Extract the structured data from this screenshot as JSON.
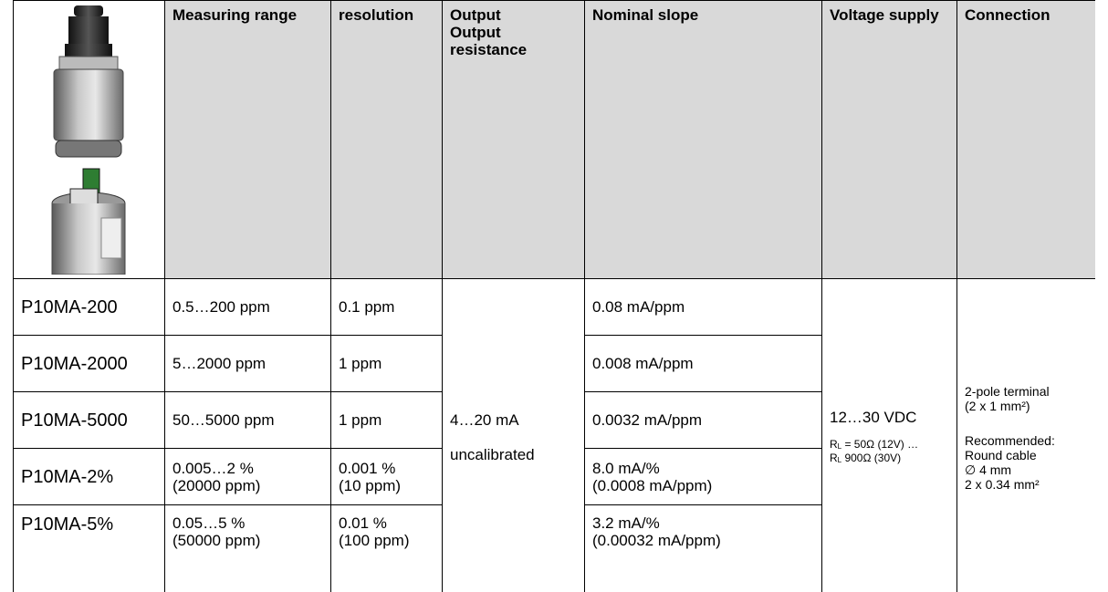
{
  "table": {
    "header": [
      "Measuring range",
      "resolution",
      [
        "Output",
        "Output resistance"
      ],
      "Nominal slope",
      "Voltage supply",
      "Connection"
    ],
    "rows": [
      [
        "P10MA-200",
        "0.5…200 ppm",
        "0.1 ppm",
        "0.08 mA/ppm"
      ],
      [
        "P10MA-2000",
        "5…2000 ppm",
        "1 ppm",
        "0.008 mA/ppm"
      ],
      [
        "P10MA-5000",
        "50…5000 ppm",
        "1 ppm",
        "0.0032 mA/ppm"
      ],
      [
        "P10MA-2%",
        [
          "0.005…2 %",
          "(20000 ppm)"
        ],
        [
          "0.001 %",
          "(10 ppm)"
        ],
        [
          "8.0 mA/%",
          "(0.0008 mA/ppm)"
        ]
      ],
      [
        "P10MA-5%",
        [
          "0.05…5 %",
          "(50000 ppm)"
        ],
        [
          "0.01 %",
          "(100 ppm)"
        ],
        [
          "3.2 mA/%",
          "(0.00032 mA/ppm)"
        ]
      ]
    ],
    "output": [
      "4…20 mA",
      "uncalibrated"
    ],
    "voltage": {
      "main": "12…30 VDC",
      "notes": [
        {
          "base": "R",
          "sub": "L",
          "text": " = 50Ω (12V) …"
        },
        {
          "base": "R",
          "sub": "L",
          "text": " 900Ω (30V)"
        }
      ]
    },
    "connection": [
      [
        "2-pole terminal",
        "(2 x 1 mm²)"
      ],
      [
        "Recommended:",
        "Round cable",
        "∅ 4 mm",
        "2 x 0.34 mm²"
      ]
    ]
  }
}
